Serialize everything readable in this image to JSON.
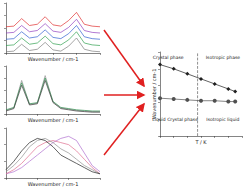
{
  "chart_data": [
    {
      "type": "line",
      "xlabel": "Wavenumber / cm-1",
      "x": [
        600,
        700,
        800,
        900,
        1000,
        1100,
        1200,
        1300,
        1400,
        1500,
        1600,
        1700,
        1800
      ],
      "xlim": [
        600,
        1800
      ],
      "xticks": [
        600,
        900,
        1200,
        1500,
        1800
      ],
      "ylim": [
        0,
        8
      ],
      "yticks": [
        0,
        2,
        4,
        6,
        8
      ],
      "tick_labels": false,
      "series": [
        {
          "color": "#e03030",
          "values": [
            4.2,
            4.3,
            5.5,
            4.4,
            4.6,
            5.8,
            4.5,
            4.3,
            5.2,
            6.5,
            4.6,
            4.3,
            4.2
          ]
        },
        {
          "color": "#9040c0",
          "values": [
            3.2,
            3.3,
            4.4,
            3.4,
            3.6,
            4.7,
            3.5,
            3.3,
            4.1,
            5.4,
            3.6,
            3.3,
            3.2
          ]
        },
        {
          "color": "#3060d0",
          "values": [
            2.2,
            2.3,
            3.4,
            2.4,
            2.6,
            3.7,
            2.5,
            2.3,
            3.1,
            4.4,
            2.6,
            2.3,
            2.2
          ]
        },
        {
          "color": "#30a050",
          "values": [
            1.2,
            1.3,
            2.4,
            1.4,
            1.6,
            2.7,
            1.5,
            1.3,
            2.1,
            3.4,
            1.6,
            1.3,
            1.2
          ]
        },
        {
          "color": "#808080",
          "values": [
            0.2,
            0.3,
            1.4,
            0.4,
            0.6,
            1.7,
            0.5,
            0.3,
            1.1,
            2.4,
            0.6,
            0.3,
            0.2
          ]
        }
      ]
    },
    {
      "type": "line",
      "xlabel": "Wavenumber / cm-1",
      "x": [
        2800,
        2825,
        2850,
        2875,
        2900,
        2925,
        2950,
        2975,
        3000,
        3025,
        3050,
        3075,
        3100
      ],
      "xlim": [
        2800,
        3100
      ],
      "xticks": [
        2800,
        2900,
        3000,
        3100
      ],
      "ylim": [
        0,
        4
      ],
      "yticks": [
        0,
        1,
        2,
        3,
        4
      ],
      "tick_labels": false,
      "series": [
        {
          "color": "#909090",
          "values": [
            0.3,
            0.5,
            2.8,
            0.8,
            0.9,
            3.2,
            1.0,
            0.5,
            0.4,
            0.3,
            0.25,
            0.2,
            0.2
          ]
        },
        {
          "color": "#2f8f4f",
          "values": [
            0.35,
            0.55,
            2.6,
            0.85,
            0.95,
            3.0,
            1.05,
            0.55,
            0.45,
            0.35,
            0.3,
            0.25,
            0.25
          ]
        },
        {
          "color": "#404040",
          "values": [
            0.25,
            0.45,
            2.4,
            0.75,
            0.85,
            2.8,
            0.95,
            0.45,
            0.35,
            0.25,
            0.2,
            0.15,
            0.15
          ]
        }
      ]
    },
    {
      "type": "line",
      "xlabel": "Wavenumber / cm-1",
      "x": [
        3000,
        3050,
        3100,
        3150,
        3200,
        3250,
        3300,
        3350,
        3400,
        3450,
        3500,
        3550,
        3600
      ],
      "xlim": [
        3000,
        3600
      ],
      "xticks": [
        3000,
        3200,
        3400,
        3600
      ],
      "ylim": [
        0,
        1.2
      ],
      "yticks": [
        0,
        0.4,
        0.8,
        1.2
      ],
      "tick_labels": false,
      "series": [
        {
          "color": "#b070d0",
          "values": [
            0.1,
            0.15,
            0.25,
            0.4,
            0.55,
            0.7,
            0.85,
            0.95,
            1.0,
            0.9,
            0.6,
            0.3,
            0.15
          ]
        },
        {
          "color": "#e07090",
          "values": [
            0.1,
            0.2,
            0.35,
            0.55,
            0.75,
            0.85,
            0.9,
            0.85,
            0.8,
            0.65,
            0.45,
            0.25,
            0.1
          ]
        },
        {
          "color": "#909090",
          "values": [
            0.15,
            0.3,
            0.5,
            0.75,
            0.9,
            0.95,
            0.85,
            0.7,
            0.6,
            0.45,
            0.3,
            0.2,
            0.1
          ]
        },
        {
          "color": "#202020",
          "values": [
            0.2,
            0.4,
            0.65,
            0.85,
            0.95,
            0.9,
            0.75,
            0.55,
            0.45,
            0.35,
            0.25,
            0.15,
            0.1
          ]
        }
      ]
    },
    {
      "type": "line",
      "xlabel": "T / K",
      "ylabel": "Wavenumber / cm-1",
      "xlim": [
        300,
        420
      ],
      "xticks": [
        300,
        320,
        340,
        360,
        380,
        400,
        420
      ],
      "ylim": [
        0,
        100
      ],
      "yticks": [
        0,
        20,
        40,
        60,
        80,
        100
      ],
      "tick_labels": false,
      "series": [
        {
          "color": "#202020",
          "marker": "diamond",
          "line_style": "solid",
          "x": [
            300,
            320,
            340,
            360,
            380,
            400,
            410
          ],
          "values": [
            85,
            80,
            74,
            68,
            62,
            56,
            53
          ]
        },
        {
          "color": "#505050",
          "marker": "circle",
          "line_style": "solid",
          "x": [
            300,
            320,
            340,
            360,
            380,
            400,
            410
          ],
          "values": [
            45,
            44,
            43,
            42,
            42,
            41,
            41
          ]
        },
        {
          "color": "#606060",
          "marker": "none",
          "line_style": "dashed",
          "x": [
            355,
            355
          ],
          "values": [
            0,
            100
          ]
        }
      ],
      "annotations": [
        {
          "text": "Crystal phase",
          "x": 312,
          "y": 93
        },
        {
          "text": "Isotropic phase",
          "x": 392,
          "y": 93
        },
        {
          "text": "Liquid Crystal phase",
          "x": 322,
          "y": 20
        },
        {
          "text": "Isotropic liquid",
          "x": 392,
          "y": 20
        }
      ]
    }
  ]
}
